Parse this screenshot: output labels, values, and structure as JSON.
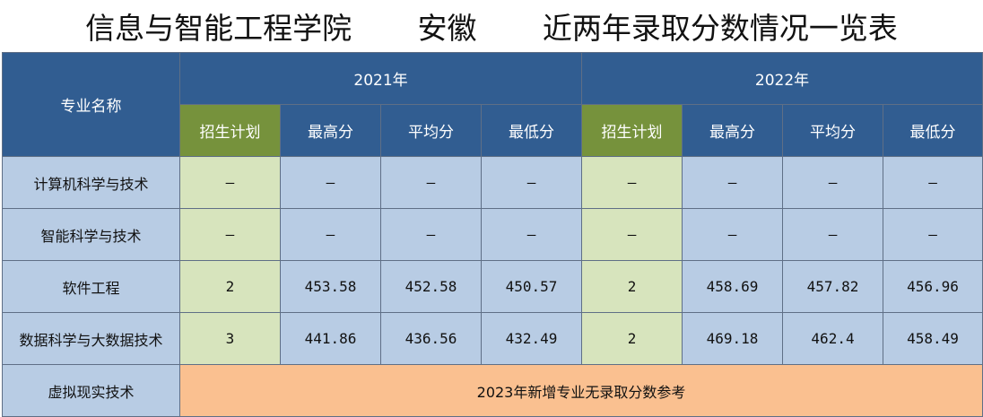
{
  "title": "信息与智能工程学院       安徽       近两年录取分数情况一览表",
  "header": {
    "major_label": "专业名称",
    "years": [
      "2021年",
      "2022年"
    ],
    "cols": [
      "招生计划",
      "最高分",
      "平均分",
      "最低分"
    ]
  },
  "rows": [
    {
      "name": "计算机科学与技术",
      "y2021": [
        "–",
        "–",
        "–",
        "–"
      ],
      "y2022": [
        "–",
        "–",
        "–",
        "–"
      ]
    },
    {
      "name": "智能科学与技术",
      "y2021": [
        "–",
        "–",
        "–",
        "–"
      ],
      "y2022": [
        "–",
        "–",
        "–",
        "–"
      ]
    },
    {
      "name": "软件工程",
      "y2021": [
        "2",
        "453.58",
        "452.58",
        "450.57"
      ],
      "y2022": [
        "2",
        "458.69",
        "457.82",
        "456.96"
      ]
    },
    {
      "name": "数据科学与大数据技术",
      "y2021": [
        "3",
        "441.86",
        "436.56",
        "432.49"
      ],
      "y2022": [
        "2",
        "469.18",
        "462.4",
        "458.49"
      ]
    }
  ],
  "new_major": {
    "name": "虚拟现实技术",
    "note": "2023年新增专业无录取分数参考"
  },
  "colors": {
    "header_blue": "#315d91",
    "plan_header_green": "#76923c",
    "plan_cell_green": "#d7e4bd",
    "cell_blue": "#b8cce4",
    "note_orange": "#fac090"
  }
}
